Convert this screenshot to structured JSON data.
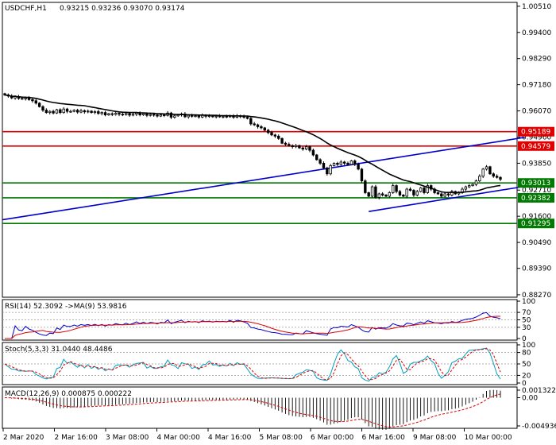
{
  "header": {
    "symbol": "USDCHF,H1",
    "ohlc": "0.93215 0.93236 0.93070 0.93174"
  },
  "chart_data": {
    "type": "candlestick",
    "price_axis": {
      "ylim": [
        0.882,
        1.0064
      ],
      "ticks": [
        "1.00510",
        "0.99400",
        "0.98290",
        "0.97180",
        "0.96070",
        "0.94960",
        "0.93850",
        "0.92710",
        "0.91600",
        "0.90490",
        "0.89390",
        "0.88270"
      ]
    },
    "x_axis": {
      "labels": [
        "2 Mar 2020",
        "2 Mar 16:00",
        "3 Mar 08:00",
        "4 Mar 00:00",
        "4 Mar 16:00",
        "5 Mar 08:00",
        "6 Mar 00:00",
        "6 Mar 16:00",
        "9 Mar 08:00",
        "10 Mar 00:00"
      ]
    },
    "resistance_levels": [
      {
        "label": "0.95189",
        "value": 0.95189,
        "color": "#e00000"
      },
      {
        "label": "0.94579",
        "value": 0.94579,
        "color": "#e00000"
      }
    ],
    "support_levels": [
      {
        "label": "0.93013",
        "value": 0.93013,
        "color": "#007a00"
      },
      {
        "label": "0.92382",
        "value": 0.92382,
        "color": "#007a00"
      },
      {
        "label": "0.91295",
        "value": 0.91295,
        "color": "#007a00"
      }
    ],
    "current_price_label": "0.93174",
    "series": {
      "close": [
        0.9675,
        0.967,
        0.9662,
        0.9668,
        0.966,
        0.9658,
        0.9662,
        0.9655,
        0.965,
        0.964,
        0.9625,
        0.961,
        0.96,
        0.9605,
        0.9598,
        0.9612,
        0.96,
        0.9615,
        0.9605,
        0.9605,
        0.961,
        0.9602,
        0.9608,
        0.9603,
        0.9606,
        0.96,
        0.9604,
        0.9596,
        0.96,
        0.959,
        0.9595,
        0.9592,
        0.9597,
        0.9593,
        0.9591,
        0.9596,
        0.9589,
        0.9593,
        0.9598,
        0.959,
        0.9595,
        0.9588,
        0.9592,
        0.959,
        0.9585,
        0.959,
        0.9588,
        0.9598,
        0.958,
        0.9586,
        0.959,
        0.9594,
        0.9582,
        0.9588,
        0.9584,
        0.9586,
        0.9581,
        0.9588,
        0.9584,
        0.9586,
        0.9582,
        0.9585,
        0.9583,
        0.9584,
        0.9582,
        0.9587,
        0.958,
        0.9586,
        0.9584,
        0.958,
        0.9575,
        0.9552,
        0.9548,
        0.954,
        0.9535,
        0.9525,
        0.9515,
        0.9505,
        0.95,
        0.949,
        0.947,
        0.9465,
        0.946,
        0.9455,
        0.946,
        0.945,
        0.9445,
        0.9455,
        0.944,
        0.942,
        0.94,
        0.9385,
        0.9365,
        0.934,
        0.9375,
        0.9385,
        0.938,
        0.939,
        0.9385,
        0.938,
        0.9395,
        0.938,
        0.936,
        0.931,
        0.926,
        0.9245,
        0.9285,
        0.924,
        0.9255,
        0.925,
        0.9245,
        0.926,
        0.929,
        0.9265,
        0.925,
        0.9245,
        0.9275,
        0.927,
        0.925,
        0.9265,
        0.928,
        0.926,
        0.929,
        0.9275,
        0.926,
        0.9255,
        0.9245,
        0.9255,
        0.925,
        0.9265,
        0.9255,
        0.926,
        0.9275,
        0.9285,
        0.929,
        0.9295,
        0.931,
        0.933,
        0.936,
        0.937,
        0.934,
        0.933,
        0.9325,
        0.9317
      ],
      "ma_period": 24
    },
    "trendlines": [
      {
        "name": "upper-trendline",
        "from": [
          0,
          0.9145
        ],
        "to": [
          145,
          0.9483
        ]
      },
      {
        "name": "lower-trendline",
        "from": [
          105,
          0.918
        ],
        "to": [
          145,
          0.9275
        ]
      }
    ],
    "rsi": {
      "label": "RSI(14) 52.3092",
      "ma_label": "->MA(9) 53.9816",
      "ticks": [
        "100",
        "70",
        "50",
        "30",
        "0"
      ],
      "ylim": [
        0,
        100
      ]
    },
    "stoch": {
      "label": "Stoch(5,3,3) 31.0440 48.4486",
      "ticks": [
        "100",
        "80",
        "50",
        "20",
        "0"
      ],
      "ylim": [
        0,
        100
      ]
    },
    "macd": {
      "label": "MACD(12,26,9) 0.000875 0.000222",
      "ticks": [
        "0.001322",
        "0.00",
        "-0.004936"
      ],
      "ylim": [
        -0.004936,
        0.001322
      ]
    },
    "colors": {
      "candle": "#000000",
      "ma": "#000000",
      "trendline": "#0000cc",
      "resistance": "#e00000",
      "support": "#007a00",
      "rsi": "#0000cc",
      "signal": "#e00000",
      "stoch_main": "#00a0c0"
    }
  }
}
